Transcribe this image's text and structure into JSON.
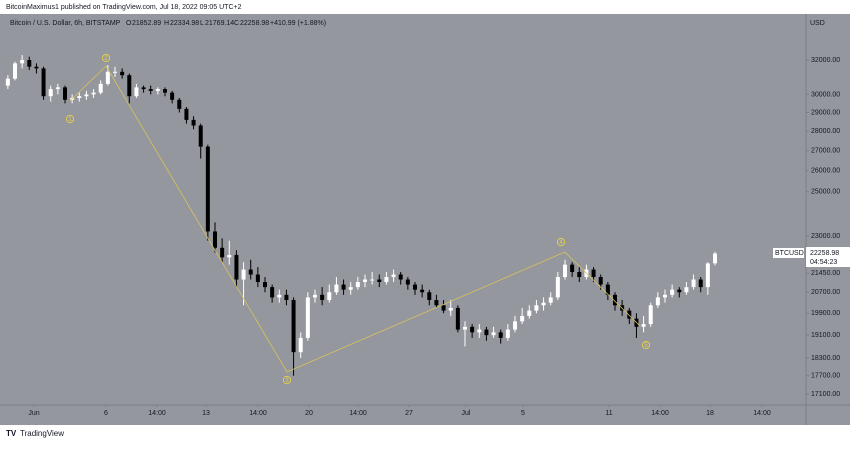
{
  "chart_data": {
    "type": "candlestick",
    "publisher": "BitcoinMaximus1 published on TradingView.com, Jul 18, 2022 09:05 UTC+2",
    "title": "Bitcoin / U.S. Dollar, 6h, BITSTAMP",
    "ohlc_letters": [
      "O",
      "H",
      "L",
      "C"
    ],
    "change": "+410.99 (+1.88%)",
    "currency": "USD",
    "symbol": "BTCUSD",
    "countdown": "04:54:23",
    "brand": "TradingView",
    "wave_labels": [
      "1",
      "2",
      "3",
      "4",
      "5"
    ],
    "up_color": "#ffffff",
    "down_color": "#000000",
    "background": "#95979e",
    "log_scale": true,
    "grid": false,
    "ylim": [
      16754,
      34884
    ],
    "yticks": [
      {
        "value": 32000,
        "label": "32000.00"
      },
      {
        "value": 30000,
        "label": "30000.00"
      },
      {
        "value": 29000,
        "label": "29000.00"
      },
      {
        "value": 28000,
        "label": "28000.00"
      },
      {
        "value": 27000,
        "label": "27000.00"
      },
      {
        "value": 26000,
        "label": "26000.00"
      },
      {
        "value": 25000,
        "label": "25000.00"
      },
      {
        "value": 23000,
        "label": "23000.00"
      },
      {
        "value": 21450,
        "label": "21450.00"
      },
      {
        "value": 20700,
        "label": "20700.00"
      },
      {
        "value": 19900,
        "label": "19900.00"
      },
      {
        "value": 19100,
        "label": "19100.00"
      },
      {
        "value": 18300,
        "label": "18300.00"
      },
      {
        "value": 17700,
        "label": "17700.00"
      },
      {
        "value": 17100,
        "label": "17100.00"
      }
    ],
    "xlim": [
      -1.1,
      110.9
    ],
    "xticks": [
      {
        "value": 3.66,
        "label": "Jun"
      },
      {
        "value": 13.74,
        "label": "6"
      },
      {
        "value": 20.88,
        "label": "14:00"
      },
      {
        "value": 27.74,
        "label": "13"
      },
      {
        "value": 35.02,
        "label": "14:00"
      },
      {
        "value": 42.16,
        "label": "20"
      },
      {
        "value": 49.02,
        "label": "14:00"
      },
      {
        "value": 56.16,
        "label": "27"
      },
      {
        "value": 64.14,
        "label": "Jul"
      },
      {
        "value": 72.12,
        "label": "5"
      },
      {
        "value": 84.16,
        "label": "11"
      },
      {
        "value": 91.3,
        "label": "14:00"
      },
      {
        "value": 98.3,
        "label": "18"
      },
      {
        "value": 105.58,
        "label": "14:00"
      }
    ],
    "candles": [
      [
        30500,
        31100,
        30300,
        30900
      ],
      [
        30900,
        31900,
        30800,
        31800
      ],
      [
        31800,
        32300,
        31500,
        32000
      ],
      [
        32000,
        32200,
        31400,
        31600
      ],
      [
        31600,
        31800,
        31200,
        31500
      ],
      [
        31500,
        31600,
        29700,
        29900
      ],
      [
        29900,
        30500,
        29600,
        30300
      ],
      [
        30300,
        30600,
        30000,
        30400
      ],
      [
        30400,
        30500,
        29500,
        29700
      ],
      [
        29700,
        30000,
        29500,
        29800
      ],
      [
        29800,
        30100,
        29600,
        29900
      ],
      [
        29900,
        30200,
        29700,
        30000
      ],
      [
        30000,
        30300,
        29800,
        30100
      ],
      [
        30100,
        30800,
        30000,
        30600
      ],
      [
        30600,
        31700,
        30500,
        31300
      ],
      [
        31300,
        31600,
        31000,
        31300
      ],
      [
        31300,
        31500,
        30900,
        31100
      ],
      [
        31100,
        31200,
        29500,
        29900
      ],
      [
        29900,
        30600,
        29800,
        30400
      ],
      [
        30400,
        30500,
        30100,
        30300
      ],
      [
        30300,
        30500,
        30000,
        30200
      ],
      [
        30200,
        30400,
        30000,
        30300
      ],
      [
        30300,
        30400,
        29900,
        30100
      ],
      [
        30100,
        30200,
        29500,
        29700
      ],
      [
        29700,
        29800,
        29000,
        29200
      ],
      [
        29200,
        29300,
        28400,
        28600
      ],
      [
        28600,
        28800,
        28100,
        28300
      ],
      [
        28300,
        28400,
        26600,
        27200
      ],
      [
        27200,
        27300,
        22800,
        23200
      ],
      [
        23200,
        23600,
        22300,
        22500
      ],
      [
        22500,
        22900,
        21900,
        22100
      ],
      [
        22100,
        22800,
        21800,
        22200
      ],
      [
        22200,
        22400,
        20900,
        21200
      ],
      [
        21200,
        21900,
        20200,
        21600
      ],
      [
        21600,
        22000,
        21200,
        21400
      ],
      [
        21400,
        21700,
        20900,
        21100
      ],
      [
        21100,
        21300,
        20700,
        20900
      ],
      [
        20900,
        21000,
        20300,
        20500
      ],
      [
        20500,
        20800,
        20300,
        20600
      ],
      [
        20600,
        20800,
        20200,
        20400
      ],
      [
        20400,
        20500,
        17700,
        18500
      ],
      [
        18500,
        19200,
        18300,
        19000
      ],
      [
        19000,
        20700,
        18900,
        20500
      ],
      [
        20500,
        20800,
        20300,
        20600
      ],
      [
        20600,
        20900,
        20200,
        20400
      ],
      [
        20400,
        21000,
        20300,
        20700
      ],
      [
        20700,
        21300,
        20600,
        21000
      ],
      [
        21000,
        21200,
        20600,
        20800
      ],
      [
        20800,
        21100,
        20600,
        20900
      ],
      [
        20900,
        21300,
        20800,
        21100
      ],
      [
        21100,
        21400,
        20900,
        21200
      ],
      [
        21200,
        21500,
        21000,
        21200
      ],
      [
        21200,
        21400,
        20900,
        21100
      ],
      [
        21100,
        21500,
        21000,
        21300
      ],
      [
        21300,
        21600,
        21100,
        21400
      ],
      [
        21400,
        21500,
        21000,
        21200
      ],
      [
        21200,
        21300,
        20800,
        21000
      ],
      [
        21000,
        21100,
        20600,
        20800
      ],
      [
        20800,
        21000,
        20500,
        20700
      ],
      [
        20700,
        20800,
        20200,
        20400
      ],
      [
        20400,
        20600,
        20100,
        20200
      ],
      [
        20200,
        20400,
        19900,
        20000
      ],
      [
        20000,
        20400,
        19800,
        20100
      ],
      [
        20100,
        20200,
        19200,
        19300
      ],
      [
        19300,
        19600,
        18700,
        19400
      ],
      [
        19400,
        19500,
        19000,
        19200
      ],
      [
        19200,
        19500,
        19000,
        19300
      ],
      [
        19300,
        19400,
        18900,
        19100
      ],
      [
        19100,
        19400,
        19000,
        19200
      ],
      [
        19200,
        19300,
        18800,
        19000
      ],
      [
        19000,
        19500,
        18900,
        19300
      ],
      [
        19300,
        19800,
        19200,
        19600
      ],
      [
        19600,
        20100,
        19500,
        19800
      ],
      [
        19800,
        20200,
        19700,
        20000
      ],
      [
        20000,
        20400,
        19900,
        20200
      ],
      [
        20200,
        20500,
        20000,
        20300
      ],
      [
        20300,
        20700,
        20200,
        20500
      ],
      [
        20500,
        21500,
        20400,
        21300
      ],
      [
        21300,
        22000,
        21200,
        21800
      ],
      [
        21800,
        21900,
        21300,
        21500
      ],
      [
        21500,
        21700,
        21100,
        21300
      ],
      [
        21300,
        21800,
        21200,
        21600
      ],
      [
        21600,
        21700,
        21100,
        21300
      ],
      [
        21300,
        21400,
        20800,
        21000
      ],
      [
        21000,
        21100,
        20400,
        20600
      ],
      [
        20600,
        20700,
        20000,
        20200
      ],
      [
        20200,
        20400,
        19800,
        20000
      ],
      [
        20000,
        20100,
        19500,
        19700
      ],
      [
        19700,
        19900,
        19000,
        19400
      ],
      [
        19400,
        19800,
        19200,
        19500
      ],
      [
        19500,
        20300,
        19400,
        20200
      ],
      [
        20200,
        20700,
        20100,
        20500
      ],
      [
        20500,
        20800,
        20300,
        20600
      ],
      [
        20600,
        21000,
        20500,
        20800
      ],
      [
        20800,
        20900,
        20500,
        20700
      ],
      [
        20700,
        21100,
        20600,
        20900
      ],
      [
        20900,
        21400,
        20800,
        21200
      ],
      [
        21200,
        21300,
        20700,
        20900
      ],
      [
        20900,
        21900,
        20600,
        21850
      ],
      [
        21852.89,
        22334.98,
        21769.14,
        22258.98
      ]
    ]
  }
}
